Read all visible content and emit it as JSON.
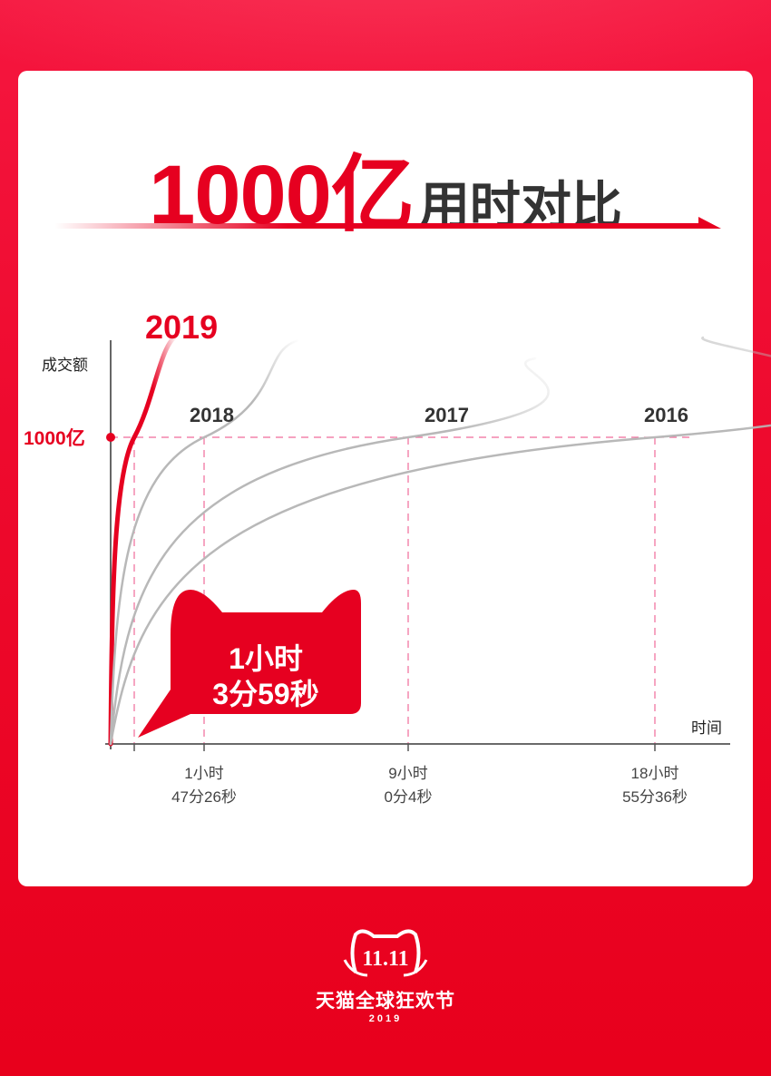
{
  "title": {
    "highlight": "1000亿",
    "rest": "用时对比"
  },
  "chart_data": {
    "type": "line",
    "ylabel": "成交额",
    "xlabel": "时间",
    "threshold_label": "1000亿",
    "series": [
      {
        "name": "2019",
        "time_to_100b": "1小时3分59秒",
        "color": "#e60020"
      },
      {
        "name": "2018",
        "time_to_100b": "1小时47分26秒",
        "color": "#b8b8b8"
      },
      {
        "name": "2017",
        "time_to_100b": "9小时0分4秒",
        "color": "#b8b8b8"
      },
      {
        "name": "2016",
        "time_to_100b": "18小时55分36秒",
        "color": "#b8b8b8"
      }
    ],
    "tick_labels": [
      {
        "line1": "1小时",
        "line2": "47分26秒"
      },
      {
        "line1": "9小时",
        "line2": "0分4秒"
      },
      {
        "line1": "18小时",
        "line2": "55分36秒"
      }
    ],
    "callout": {
      "line1": "1小时",
      "line2": "3分59秒"
    },
    "grid": false
  },
  "logo": {
    "text": "天猫全球狂欢节",
    "year": "2019",
    "mark": "11.11"
  },
  "colors": {
    "accent": "#e60020",
    "gray": "#b8b8b8",
    "dash": "#f06a9a"
  }
}
